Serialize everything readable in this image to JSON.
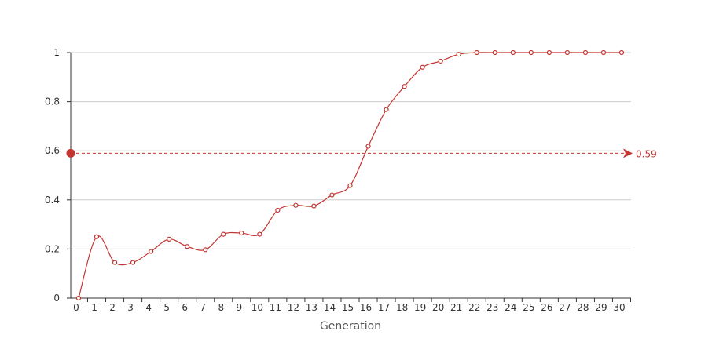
{
  "chart_data": {
    "type": "line",
    "title": "",
    "xlabel": "Generation",
    "ylabel": "",
    "x": [
      0,
      1,
      2,
      3,
      4,
      5,
      6,
      7,
      8,
      9,
      10,
      11,
      12,
      13,
      14,
      15,
      16,
      17,
      18,
      19,
      20,
      21,
      22,
      23,
      24,
      25,
      26,
      27,
      28,
      29,
      30
    ],
    "x_tick_labels": [
      "0",
      "1",
      "2",
      "3",
      "4",
      "5",
      "6",
      "7",
      "8",
      "9",
      "10",
      "11",
      "12",
      "13",
      "14",
      "15",
      "16",
      "17",
      "18",
      "19",
      "20",
      "21",
      "22",
      "23",
      "24",
      "25",
      "26",
      "27",
      "28",
      "29",
      "30"
    ],
    "y_tick_labels": [
      "0",
      "0.2",
      "0.4",
      "0.6",
      "0.8",
      "1"
    ],
    "y_ticks": [
      0,
      0.2,
      0.4,
      0.6,
      0.8,
      1
    ],
    "ylim": [
      0,
      1
    ],
    "grid": true,
    "series": [
      {
        "name": "",
        "color": "#c23531",
        "smooth": true,
        "values": [
          0,
          0.25,
          0.145,
          0.145,
          0.19,
          0.24,
          0.21,
          0.197,
          0.26,
          0.265,
          0.26,
          0.358,
          0.378,
          0.375,
          0.42,
          0.458,
          0.618,
          0.768,
          0.862,
          0.94,
          0.965,
          0.993,
          1,
          1,
          1,
          1,
          1,
          1,
          1,
          1,
          1
        ]
      }
    ],
    "mark_line": {
      "value": 0.59,
      "label": "0.59",
      "color": "#c23531",
      "style": "dashed"
    }
  }
}
